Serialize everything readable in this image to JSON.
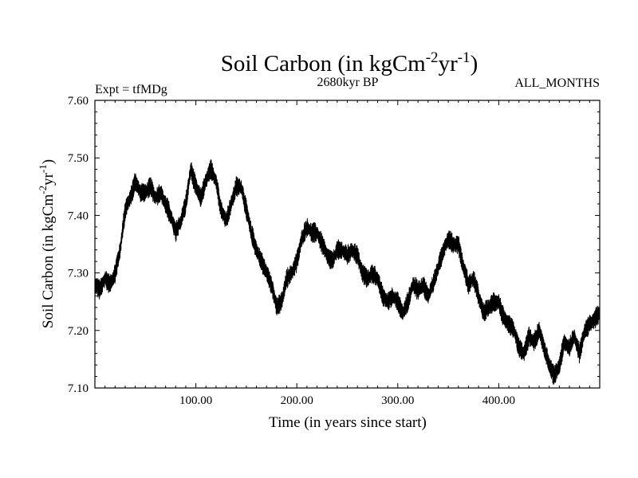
{
  "chart_data": {
    "type": "line",
    "title": "Soil Carbon (in kgCm",
    "title_sup1": "-2",
    "title_mid": "yr",
    "title_sup2": "-1",
    "title_end": ")",
    "subtitle_left": "Expt = tfMDg",
    "subtitle_center": "2680kyr BP",
    "subtitle_right": "ALL_MONTHS",
    "xlabel": "Time (in years since start)",
    "ylabel": "Soil Carbon (in kgCm",
    "ylabel_sup1": "-2",
    "ylabel_mid": "yr",
    "ylabel_sup2": "-1",
    "ylabel_end": ")",
    "xlim": [
      0,
      500
    ],
    "ylim": [
      7.1,
      7.6
    ],
    "xticks": [
      100,
      200,
      300,
      400
    ],
    "xtick_labels": [
      "100.00",
      "200.00",
      "300.00",
      "400.00"
    ],
    "yticks": [
      7.1,
      7.2,
      7.3,
      7.4,
      7.5,
      7.6
    ],
    "ytick_labels": [
      "7.10",
      "7.20",
      "7.30",
      "7.40",
      "7.50",
      "7.60"
    ],
    "series": [
      {
        "name": "Soil Carbon",
        "color": "#000000",
        "x": [
          0,
          5,
          10,
          15,
          20,
          25,
          30,
          35,
          40,
          45,
          50,
          55,
          60,
          65,
          70,
          75,
          80,
          85,
          90,
          95,
          100,
          105,
          110,
          115,
          120,
          125,
          130,
          135,
          140,
          145,
          150,
          155,
          160,
          165,
          170,
          175,
          180,
          185,
          190,
          195,
          200,
          205,
          210,
          215,
          220,
          225,
          230,
          235,
          240,
          245,
          250,
          255,
          260,
          265,
          270,
          275,
          280,
          285,
          290,
          295,
          300,
          305,
          310,
          315,
          320,
          325,
          330,
          335,
          340,
          345,
          350,
          355,
          360,
          365,
          370,
          375,
          380,
          385,
          390,
          395,
          400,
          405,
          410,
          415,
          420,
          425,
          430,
          435,
          440,
          445,
          450,
          455,
          460,
          465,
          470,
          475,
          480,
          485,
          490,
          495,
          500
        ],
        "y": [
          7.28,
          7.27,
          7.29,
          7.28,
          7.3,
          7.34,
          7.41,
          7.43,
          7.46,
          7.44,
          7.44,
          7.45,
          7.43,
          7.44,
          7.42,
          7.4,
          7.37,
          7.39,
          7.42,
          7.48,
          7.45,
          7.43,
          7.46,
          7.48,
          7.46,
          7.41,
          7.39,
          7.42,
          7.45,
          7.45,
          7.41,
          7.37,
          7.34,
          7.32,
          7.3,
          7.28,
          7.24,
          7.25,
          7.29,
          7.3,
          7.32,
          7.36,
          7.38,
          7.37,
          7.37,
          7.35,
          7.33,
          7.32,
          7.34,
          7.34,
          7.33,
          7.34,
          7.33,
          7.3,
          7.29,
          7.3,
          7.29,
          7.26,
          7.25,
          7.26,
          7.25,
          7.23,
          7.25,
          7.28,
          7.27,
          7.28,
          7.26,
          7.28,
          7.31,
          7.34,
          7.36,
          7.35,
          7.35,
          7.31,
          7.28,
          7.29,
          7.26,
          7.23,
          7.24,
          7.25,
          7.25,
          7.22,
          7.21,
          7.2,
          7.17,
          7.16,
          7.19,
          7.18,
          7.2,
          7.17,
          7.14,
          7.12,
          7.14,
          7.18,
          7.17,
          7.19,
          7.16,
          7.2,
          7.21,
          7.22,
          7.23
        ]
      }
    ]
  }
}
